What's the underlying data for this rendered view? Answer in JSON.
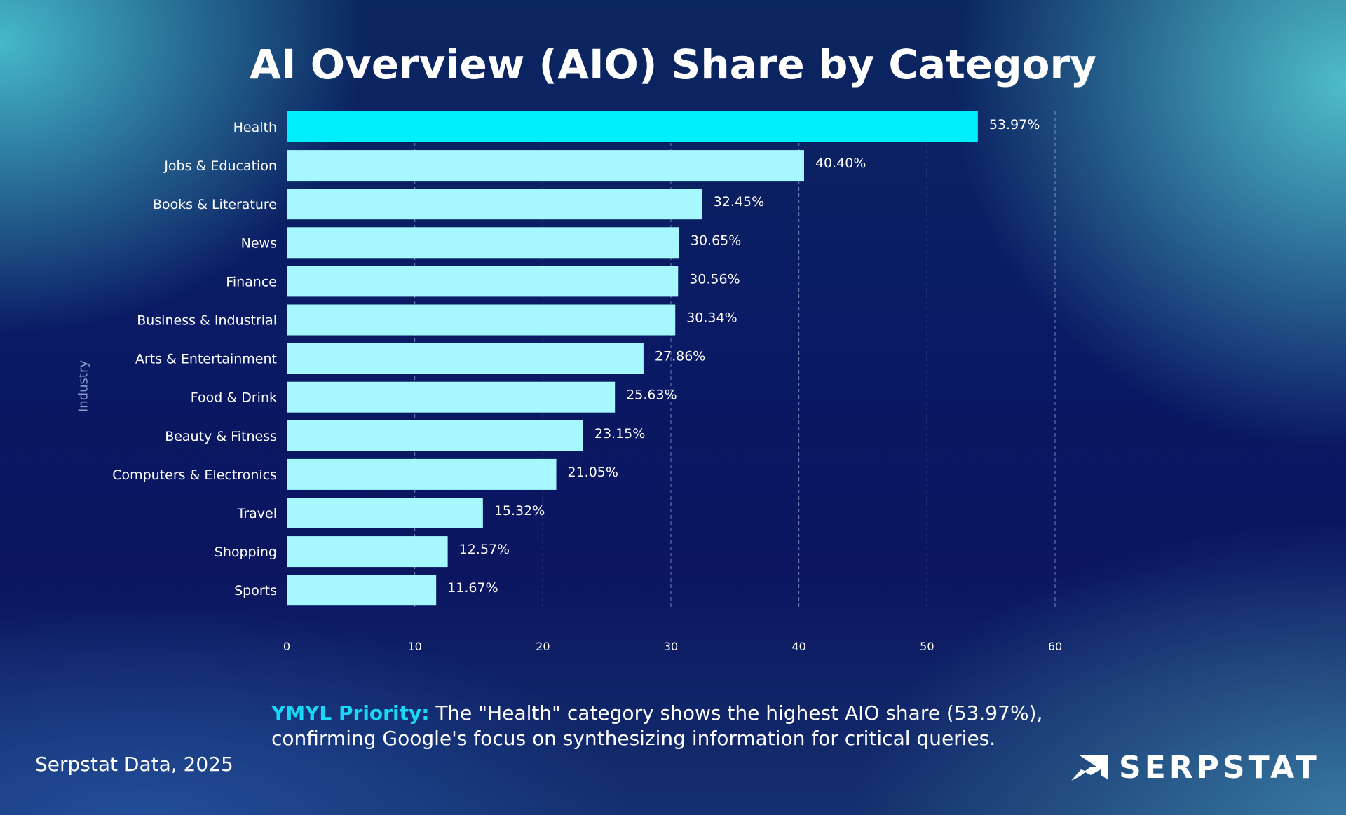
{
  "chart_data": {
    "type": "bar",
    "orientation": "horizontal",
    "title": "AI Overview (AIO) Share by Category",
    "ylabel": "Industry",
    "xlabel": "",
    "xlim": [
      0,
      60
    ],
    "xticks": [
      0,
      10,
      20,
      30,
      40,
      50,
      60
    ],
    "grid": true,
    "categories": [
      "Health",
      "Jobs & Education",
      "Books & Literature",
      "News",
      "Finance",
      "Business & Industrial",
      "Arts & Entertainment",
      "Food & Drink",
      "Beauty & Fitness",
      "Computers & Electronics",
      "Travel",
      "Shopping",
      "Sports"
    ],
    "values": [
      53.97,
      40.4,
      32.45,
      30.65,
      30.56,
      30.34,
      27.86,
      25.63,
      23.15,
      21.05,
      15.32,
      12.57,
      11.67
    ],
    "data_labels": [
      "53.97%",
      "40.40%",
      "32.45%",
      "30.65%",
      "30.56%",
      "30.34%",
      "27.86%",
      "25.63%",
      "23.15%",
      "21.05%",
      "15.32%",
      "12.57%",
      "11.67%"
    ],
    "colors": {
      "highlight": "#00eefc",
      "default": "#a6f8fe"
    }
  },
  "note": {
    "highlight": "YMYL Priority:",
    "line1": " The \"Health\" category shows the highest AIO share (53.97%),",
    "line2": "confirming Google's focus on synthesizing information for critical queries."
  },
  "source": "Serpstat Data, 2025",
  "logo": {
    "text": "SERPSTAT",
    "icon": "serpstat-chart-arrow-icon"
  }
}
